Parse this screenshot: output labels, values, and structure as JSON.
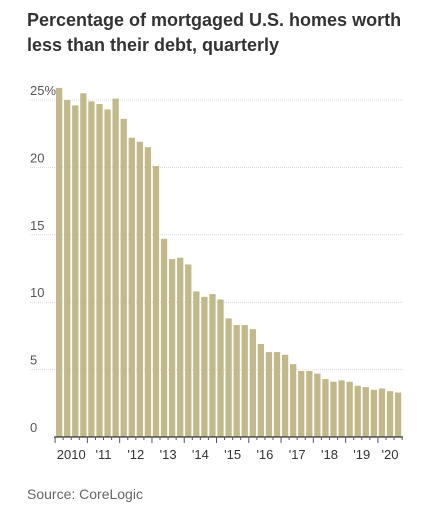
{
  "chart_data": {
    "type": "bar",
    "title": "Percentage of mortgaged U.S. homes worth less than their debt, quarterly",
    "source": "Source: CoreLogic",
    "xlabel": "",
    "ylabel": "",
    "ylim": [
      0,
      25
    ],
    "y_ticks": [
      0,
      5,
      10,
      15,
      20,
      25
    ],
    "y_tick_labels": [
      "0",
      "5",
      "10",
      "15",
      "20",
      "25%"
    ],
    "grid": true,
    "bar_color": "#c2b98b",
    "x_tick_labels": [
      "2010",
      "'11",
      "'12",
      "'13",
      "'14",
      "'15",
      "'16",
      "'17",
      "'18",
      "'19",
      "'20"
    ],
    "x": [
      "2010 Q1",
      "2010 Q2",
      "2010 Q3",
      "2010 Q4",
      "2011 Q1",
      "2011 Q2",
      "2011 Q3",
      "2011 Q4",
      "2012 Q1",
      "2012 Q2",
      "2012 Q3",
      "2012 Q4",
      "2013 Q1",
      "2013 Q2",
      "2013 Q3",
      "2013 Q4",
      "2014 Q1",
      "2014 Q2",
      "2014 Q3",
      "2014 Q4",
      "2015 Q1",
      "2015 Q2",
      "2015 Q3",
      "2015 Q4",
      "2016 Q1",
      "2016 Q2",
      "2016 Q3",
      "2016 Q4",
      "2017 Q1",
      "2017 Q2",
      "2017 Q3",
      "2017 Q4",
      "2018 Q1",
      "2018 Q2",
      "2018 Q3",
      "2018 Q4",
      "2019 Q1",
      "2019 Q2",
      "2019 Q3",
      "2019 Q4",
      "2020 Q1",
      "2020 Q2",
      "2020 Q3"
    ],
    "values": [
      25.9,
      25.0,
      24.6,
      25.5,
      24.9,
      24.7,
      24.3,
      25.1,
      23.6,
      22.2,
      21.9,
      21.5,
      20.1,
      14.7,
      13.2,
      13.3,
      12.8,
      10.8,
      10.4,
      10.6,
      10.2,
      8.8,
      8.3,
      8.3,
      8.0,
      6.9,
      6.3,
      6.3,
      6.1,
      5.4,
      4.9,
      4.9,
      4.7,
      4.3,
      4.1,
      4.2,
      4.1,
      3.8,
      3.7,
      3.5,
      3.6,
      3.4,
      3.3
    ]
  }
}
